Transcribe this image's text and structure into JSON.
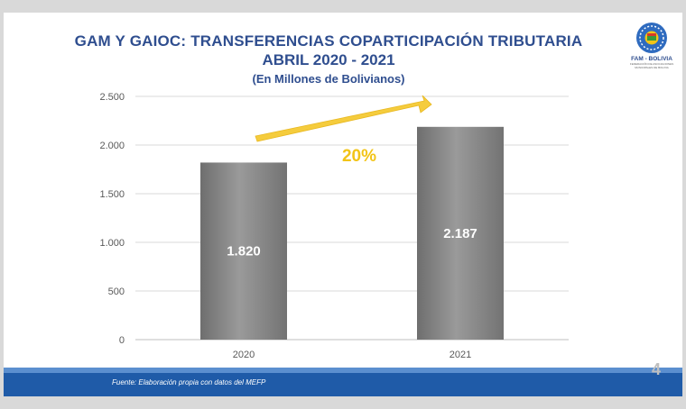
{
  "slide": {
    "title_line1": "GAM Y GAIOC: TRANSFERENCIAS COPARTICIPACIÓN TRIBUTARIA",
    "title_line2": "ABRIL 2020 - 2021",
    "title_line3": "(En Millones de Bolivianos)",
    "logo_text": "FAM - BOLIVIA",
    "logo_subtext": "FEDERACIÓN DE ASOCIACIONES MUNICIPALES DE BOLIVIA",
    "growth_label": "20%",
    "footer_source": "Fuente: Elaboración propia con datos del MEFP",
    "page_number": "4"
  },
  "colors": {
    "title": "#2f4e8f",
    "bar": "#7f7f7f",
    "arrow": "#f5cc3d",
    "growth_label": "#f2c418",
    "footer": "#1f5ba8"
  },
  "chart_data": {
    "type": "bar",
    "categories": [
      "2020",
      "2021"
    ],
    "values": [
      1820,
      2187
    ],
    "value_labels": [
      "1.820",
      "2.187"
    ],
    "ylim": [
      0,
      2500
    ],
    "yticks": [
      0,
      500,
      1000,
      1500,
      2000,
      2500
    ],
    "ytick_labels": [
      "0",
      "500",
      "1.000",
      "1.500",
      "2.000",
      "2.500"
    ],
    "grid": true,
    "legend": "none"
  }
}
